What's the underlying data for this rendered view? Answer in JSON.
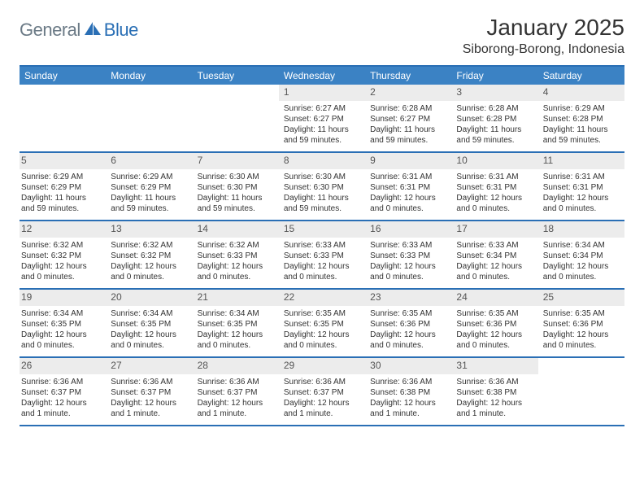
{
  "logo": {
    "text1": "General",
    "text2": "Blue"
  },
  "title": "January 2025",
  "location": "Siborong-Borong, Indonesia",
  "colors": {
    "header_bg": "#3b82c4",
    "border": "#2a6fb5",
    "daynum_bg": "#ececec",
    "text": "#333333",
    "logo_gray": "#6b7a86",
    "logo_blue": "#2a6fb5"
  },
  "weekdays": [
    "Sunday",
    "Monday",
    "Tuesday",
    "Wednesday",
    "Thursday",
    "Friday",
    "Saturday"
  ],
  "weeks": [
    [
      {
        "n": "",
        "sr": "",
        "ss": "",
        "dl1": "",
        "dl2": ""
      },
      {
        "n": "",
        "sr": "",
        "ss": "",
        "dl1": "",
        "dl2": ""
      },
      {
        "n": "",
        "sr": "",
        "ss": "",
        "dl1": "",
        "dl2": ""
      },
      {
        "n": "1",
        "sr": "Sunrise: 6:27 AM",
        "ss": "Sunset: 6:27 PM",
        "dl1": "Daylight: 11 hours",
        "dl2": "and 59 minutes."
      },
      {
        "n": "2",
        "sr": "Sunrise: 6:28 AM",
        "ss": "Sunset: 6:27 PM",
        "dl1": "Daylight: 11 hours",
        "dl2": "and 59 minutes."
      },
      {
        "n": "3",
        "sr": "Sunrise: 6:28 AM",
        "ss": "Sunset: 6:28 PM",
        "dl1": "Daylight: 11 hours",
        "dl2": "and 59 minutes."
      },
      {
        "n": "4",
        "sr": "Sunrise: 6:29 AM",
        "ss": "Sunset: 6:28 PM",
        "dl1": "Daylight: 11 hours",
        "dl2": "and 59 minutes."
      }
    ],
    [
      {
        "n": "5",
        "sr": "Sunrise: 6:29 AM",
        "ss": "Sunset: 6:29 PM",
        "dl1": "Daylight: 11 hours",
        "dl2": "and 59 minutes."
      },
      {
        "n": "6",
        "sr": "Sunrise: 6:29 AM",
        "ss": "Sunset: 6:29 PM",
        "dl1": "Daylight: 11 hours",
        "dl2": "and 59 minutes."
      },
      {
        "n": "7",
        "sr": "Sunrise: 6:30 AM",
        "ss": "Sunset: 6:30 PM",
        "dl1": "Daylight: 11 hours",
        "dl2": "and 59 minutes."
      },
      {
        "n": "8",
        "sr": "Sunrise: 6:30 AM",
        "ss": "Sunset: 6:30 PM",
        "dl1": "Daylight: 11 hours",
        "dl2": "and 59 minutes."
      },
      {
        "n": "9",
        "sr": "Sunrise: 6:31 AM",
        "ss": "Sunset: 6:31 PM",
        "dl1": "Daylight: 12 hours",
        "dl2": "and 0 minutes."
      },
      {
        "n": "10",
        "sr": "Sunrise: 6:31 AM",
        "ss": "Sunset: 6:31 PM",
        "dl1": "Daylight: 12 hours",
        "dl2": "and 0 minutes."
      },
      {
        "n": "11",
        "sr": "Sunrise: 6:31 AM",
        "ss": "Sunset: 6:31 PM",
        "dl1": "Daylight: 12 hours",
        "dl2": "and 0 minutes."
      }
    ],
    [
      {
        "n": "12",
        "sr": "Sunrise: 6:32 AM",
        "ss": "Sunset: 6:32 PM",
        "dl1": "Daylight: 12 hours",
        "dl2": "and 0 minutes."
      },
      {
        "n": "13",
        "sr": "Sunrise: 6:32 AM",
        "ss": "Sunset: 6:32 PM",
        "dl1": "Daylight: 12 hours",
        "dl2": "and 0 minutes."
      },
      {
        "n": "14",
        "sr": "Sunrise: 6:32 AM",
        "ss": "Sunset: 6:33 PM",
        "dl1": "Daylight: 12 hours",
        "dl2": "and 0 minutes."
      },
      {
        "n": "15",
        "sr": "Sunrise: 6:33 AM",
        "ss": "Sunset: 6:33 PM",
        "dl1": "Daylight: 12 hours",
        "dl2": "and 0 minutes."
      },
      {
        "n": "16",
        "sr": "Sunrise: 6:33 AM",
        "ss": "Sunset: 6:33 PM",
        "dl1": "Daylight: 12 hours",
        "dl2": "and 0 minutes."
      },
      {
        "n": "17",
        "sr": "Sunrise: 6:33 AM",
        "ss": "Sunset: 6:34 PM",
        "dl1": "Daylight: 12 hours",
        "dl2": "and 0 minutes."
      },
      {
        "n": "18",
        "sr": "Sunrise: 6:34 AM",
        "ss": "Sunset: 6:34 PM",
        "dl1": "Daylight: 12 hours",
        "dl2": "and 0 minutes."
      }
    ],
    [
      {
        "n": "19",
        "sr": "Sunrise: 6:34 AM",
        "ss": "Sunset: 6:35 PM",
        "dl1": "Daylight: 12 hours",
        "dl2": "and 0 minutes."
      },
      {
        "n": "20",
        "sr": "Sunrise: 6:34 AM",
        "ss": "Sunset: 6:35 PM",
        "dl1": "Daylight: 12 hours",
        "dl2": "and 0 minutes."
      },
      {
        "n": "21",
        "sr": "Sunrise: 6:34 AM",
        "ss": "Sunset: 6:35 PM",
        "dl1": "Daylight: 12 hours",
        "dl2": "and 0 minutes."
      },
      {
        "n": "22",
        "sr": "Sunrise: 6:35 AM",
        "ss": "Sunset: 6:35 PM",
        "dl1": "Daylight: 12 hours",
        "dl2": "and 0 minutes."
      },
      {
        "n": "23",
        "sr": "Sunrise: 6:35 AM",
        "ss": "Sunset: 6:36 PM",
        "dl1": "Daylight: 12 hours",
        "dl2": "and 0 minutes."
      },
      {
        "n": "24",
        "sr": "Sunrise: 6:35 AM",
        "ss": "Sunset: 6:36 PM",
        "dl1": "Daylight: 12 hours",
        "dl2": "and 0 minutes."
      },
      {
        "n": "25",
        "sr": "Sunrise: 6:35 AM",
        "ss": "Sunset: 6:36 PM",
        "dl1": "Daylight: 12 hours",
        "dl2": "and 0 minutes."
      }
    ],
    [
      {
        "n": "26",
        "sr": "Sunrise: 6:36 AM",
        "ss": "Sunset: 6:37 PM",
        "dl1": "Daylight: 12 hours",
        "dl2": "and 1 minute."
      },
      {
        "n": "27",
        "sr": "Sunrise: 6:36 AM",
        "ss": "Sunset: 6:37 PM",
        "dl1": "Daylight: 12 hours",
        "dl2": "and 1 minute."
      },
      {
        "n": "28",
        "sr": "Sunrise: 6:36 AM",
        "ss": "Sunset: 6:37 PM",
        "dl1": "Daylight: 12 hours",
        "dl2": "and 1 minute."
      },
      {
        "n": "29",
        "sr": "Sunrise: 6:36 AM",
        "ss": "Sunset: 6:37 PM",
        "dl1": "Daylight: 12 hours",
        "dl2": "and 1 minute."
      },
      {
        "n": "30",
        "sr": "Sunrise: 6:36 AM",
        "ss": "Sunset: 6:38 PM",
        "dl1": "Daylight: 12 hours",
        "dl2": "and 1 minute."
      },
      {
        "n": "31",
        "sr": "Sunrise: 6:36 AM",
        "ss": "Sunset: 6:38 PM",
        "dl1": "Daylight: 12 hours",
        "dl2": "and 1 minute."
      },
      {
        "n": "",
        "sr": "",
        "ss": "",
        "dl1": "",
        "dl2": ""
      }
    ]
  ]
}
